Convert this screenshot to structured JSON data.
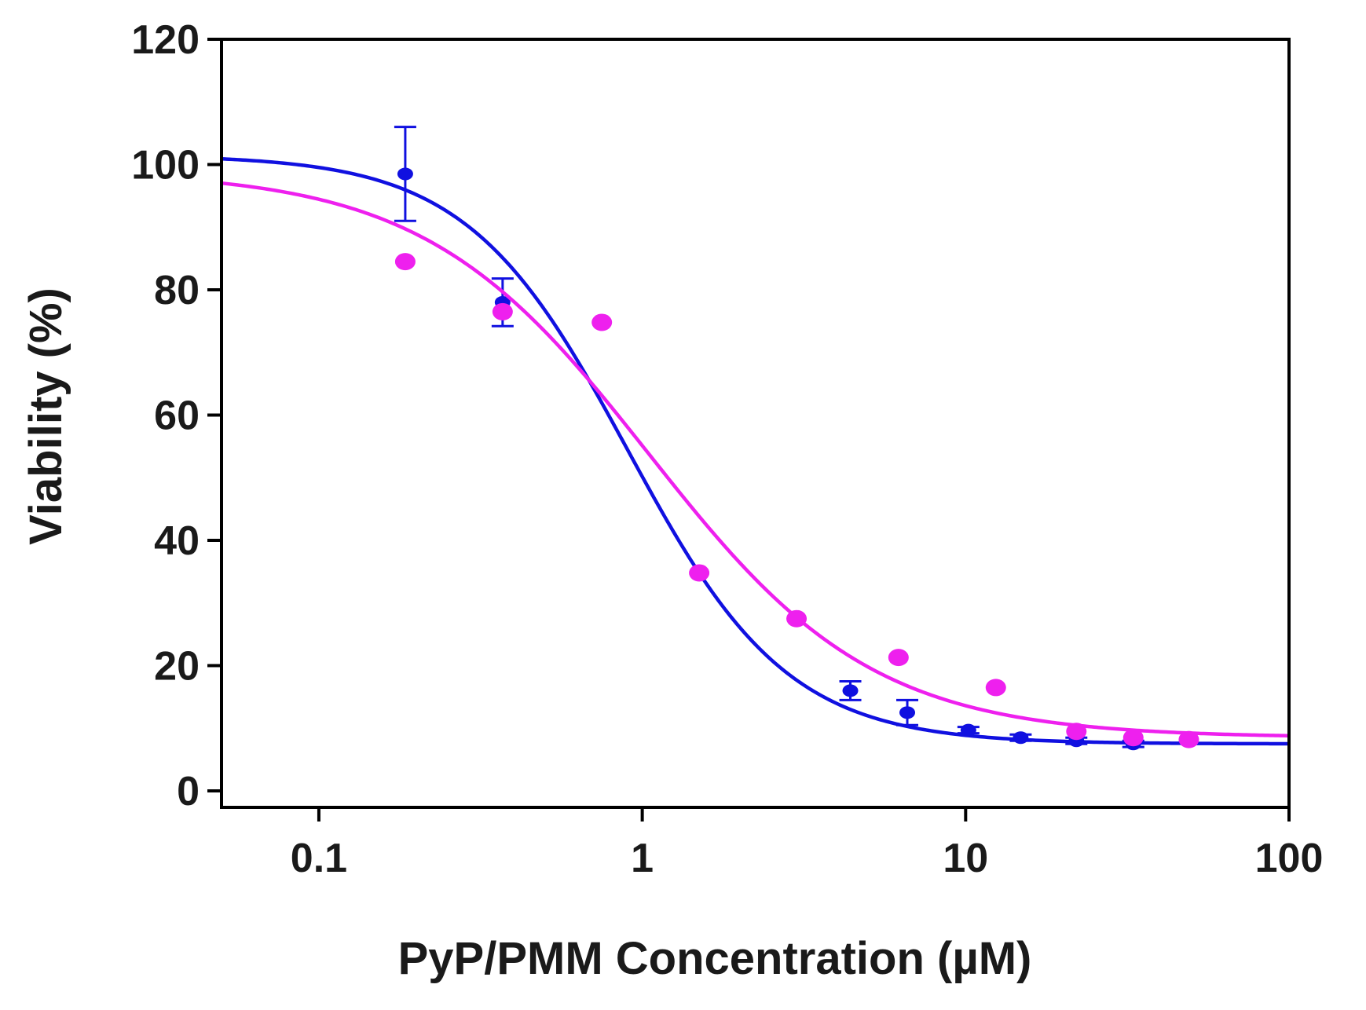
{
  "chart_data": {
    "type": "scatter",
    "title": "",
    "xlabel": "PyP/PMM Concentration (µM)",
    "ylabel": "Viability  (%)",
    "xscale": "log",
    "xlim": [
      0.05,
      100
    ],
    "ylim": [
      0,
      120
    ],
    "x_ticks": [
      0.1,
      1,
      10,
      100
    ],
    "x_tick_labels": [
      "0.1",
      "1",
      "10",
      "100"
    ],
    "y_ticks": [
      0,
      20,
      40,
      60,
      80,
      100,
      120
    ],
    "y_tick_labels": [
      "0",
      "20",
      "40",
      "60",
      "80",
      "100",
      "120"
    ],
    "grid": false,
    "legend": "none",
    "series": [
      {
        "name": "blue",
        "color": "#1010e0",
        "x": [
          0.185,
          0.37,
          4.4,
          6.6,
          10.2,
          14.8,
          22.0,
          33.0
        ],
        "y": [
          98.5,
          78.0,
          16.0,
          12.5,
          9.7,
          8.5,
          8.0,
          7.5
        ],
        "error": [
          7.5,
          3.8,
          1.5,
          2.0,
          0.5,
          0.5,
          0.5,
          0.5
        ],
        "fit": {
          "bottom": 7.5,
          "top": 101.5,
          "ec50": 0.9,
          "hill": 1.75
        }
      },
      {
        "name": "magenta",
        "color": "#ee20ee",
        "x": [
          0.185,
          0.37,
          0.75,
          1.5,
          3.0,
          6.2,
          12.4,
          22.0,
          33.0,
          49.0
        ],
        "y": [
          84.5,
          76.5,
          74.8,
          34.8,
          27.5,
          21.3,
          16.5,
          9.5,
          8.5,
          8.2
        ],
        "error": [],
        "fit": {
          "bottom": 8.5,
          "top": 99.0,
          "ec50": 1.05,
          "hill": 1.25
        }
      }
    ]
  }
}
